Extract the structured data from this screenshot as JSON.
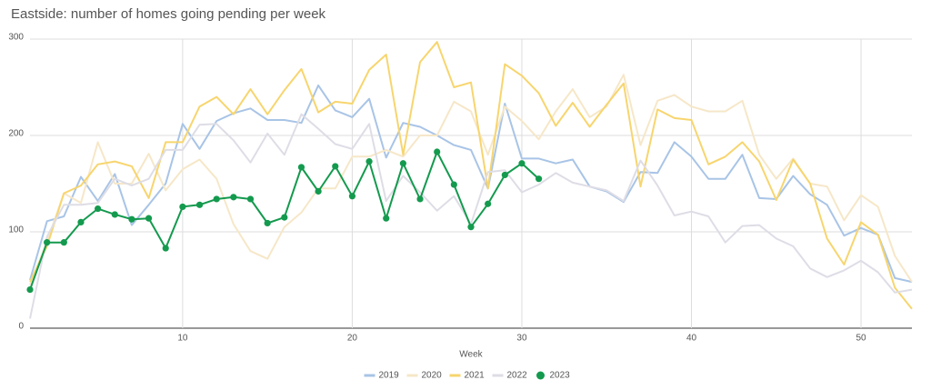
{
  "chart_data": {
    "type": "line",
    "title": "Eastside: number of homes going pending per week",
    "x_label": "Week",
    "x": [
      1,
      2,
      3,
      4,
      5,
      6,
      7,
      8,
      9,
      10,
      11,
      12,
      13,
      14,
      15,
      16,
      17,
      18,
      19,
      20,
      21,
      22,
      23,
      24,
      25,
      26,
      27,
      28,
      29,
      30,
      31,
      32,
      33,
      34,
      35,
      36,
      37,
      38,
      39,
      40,
      41,
      42,
      43,
      44,
      45,
      46,
      47,
      48,
      49,
      50,
      51,
      52,
      53
    ],
    "xlim": [
      1,
      53
    ],
    "xticks": [
      10,
      20,
      30,
      40,
      50
    ],
    "ylim": [
      0,
      300
    ],
    "yticks": [
      0,
      100,
      200,
      300
    ],
    "grid": true,
    "legend": "bottom",
    "series": [
      {
        "name": "2019",
        "color": "#a8c4e6",
        "values": [
          50,
          111,
          116,
          157,
          132,
          160,
          107,
          128,
          150,
          212,
          186,
          215,
          223,
          228,
          216,
          216,
          213,
          252,
          226,
          219,
          238,
          177,
          213,
          209,
          200,
          190,
          185,
          145,
          233,
          176,
          176,
          171,
          175,
          147,
          142,
          131,
          162,
          161,
          193,
          178,
          155,
          155,
          180,
          135,
          134,
          158,
          139,
          128,
          96,
          104,
          97,
          52,
          48
        ]
      },
      {
        "name": "2020",
        "color": "#f6e7c8",
        "values": [
          45,
          90,
          140,
          130,
          193,
          150,
          150,
          181,
          143,
          165,
          175,
          155,
          108,
          80,
          72,
          105,
          120,
          145,
          145,
          178,
          178,
          185,
          178,
          200,
          200,
          235,
          225,
          180,
          230,
          215,
          196,
          225,
          248,
          219,
          230,
          263,
          190,
          236,
          242,
          230,
          225,
          225,
          236,
          180,
          155,
          176,
          150,
          147,
          112,
          138,
          126,
          75,
          48
        ]
      },
      {
        "name": "2021",
        "color": "#f7d56e",
        "values": [
          48,
          85,
          140,
          148,
          170,
          173,
          168,
          135,
          193,
          193,
          230,
          240,
          222,
          248,
          222,
          247,
          269,
          224,
          235,
          233,
          268,
          284,
          180,
          276,
          297,
          250,
          255,
          145,
          274,
          262,
          244,
          210,
          234,
          209,
          232,
          254,
          147,
          227,
          218,
          216,
          170,
          178,
          193,
          173,
          133,
          175,
          150,
          93,
          66,
          110,
          97,
          42,
          20
        ]
      },
      {
        "name": "2022",
        "color": "#dedde6",
        "values": [
          10,
          95,
          128,
          128,
          130,
          155,
          148,
          155,
          185,
          185,
          211,
          212,
          195,
          172,
          202,
          180,
          222,
          207,
          191,
          186,
          212,
          132,
          158,
          141,
          122,
          137,
          108,
          162,
          164,
          141,
          149,
          161,
          151,
          147,
          143,
          132,
          174,
          148,
          117,
          121,
          116,
          89,
          106,
          107,
          93,
          85,
          62,
          53,
          60,
          70,
          58,
          37,
          40
        ]
      },
      {
        "name": "2023",
        "color": "#149a4e",
        "points": true,
        "values": [
          40,
          89,
          89,
          110,
          124,
          118,
          113,
          114,
          83,
          126,
          128,
          134,
          136,
          134,
          109,
          115,
          167,
          142,
          168,
          137,
          173,
          114,
          171,
          134,
          183,
          149,
          105,
          129,
          159,
          171,
          155,
          null,
          null,
          null,
          null,
          null,
          null,
          null,
          null,
          null,
          null,
          null,
          null,
          null,
          null,
          null,
          null,
          null,
          null,
          null,
          null,
          null,
          null
        ]
      }
    ]
  }
}
